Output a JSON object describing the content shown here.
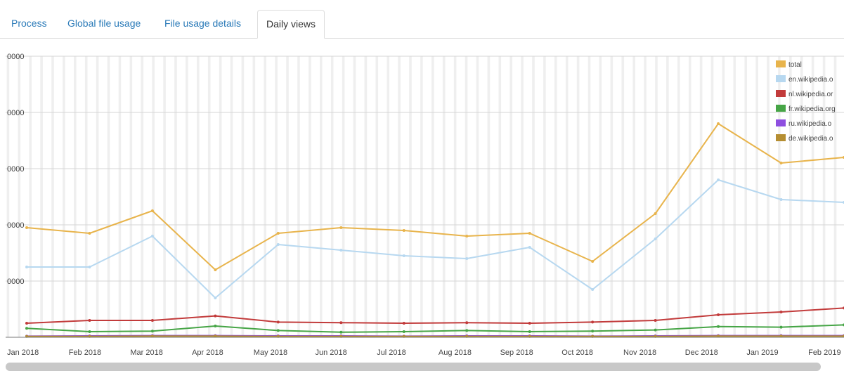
{
  "tabs": [
    {
      "label": "Process",
      "active": false
    },
    {
      "label": "Global file usage",
      "active": false
    },
    {
      "label": "File usage details",
      "active": false
    },
    {
      "label": "Daily views",
      "active": true
    }
  ],
  "chart_data": {
    "type": "line",
    "ylim": [
      0,
      50000
    ],
    "y_tick_labels": [
      "0000",
      "0000",
      "0000",
      "0000",
      "0000"
    ],
    "x_tick_labels": [
      "Jan 2018",
      "Feb 2018",
      "Mar 2018",
      "Apr 2018",
      "May 2018",
      "Jun 2018",
      "Jul 2018",
      "Aug 2018",
      "Sep 2018",
      "Oct 2018",
      "Nov 2018",
      "Dec 2018",
      "Jan 2019",
      "Feb 2019"
    ],
    "grid": "vertical daily stripes with horizontal gridlines",
    "legend_position": "top-right",
    "x": [
      "Jan 2018",
      "Feb 2018",
      "Mar 2018",
      "Apr 2018",
      "May 2018",
      "Jun 2018",
      "Jul 2018",
      "Aug 2018",
      "Sep 2018",
      "Oct 2018",
      "Nov 2018",
      "Dec 2018",
      "Jan 2019",
      "Feb 2019"
    ],
    "series": [
      {
        "name": "total",
        "color": "#e8b44c",
        "values": [
          19500,
          18500,
          22500,
          12000,
          18500,
          19500,
          19000,
          18000,
          18500,
          13500,
          22000,
          38000,
          31000,
          32000
        ]
      },
      {
        "name": "en.wikipedia.o",
        "color": "#b7d8f0",
        "values": [
          12500,
          12500,
          18000,
          7000,
          16500,
          15500,
          14500,
          14000,
          16000,
          8500,
          17500,
          28000,
          24500,
          24000
        ]
      },
      {
        "name": "nl.wikipedia.or",
        "color": "#c23b3b",
        "values": [
          2500,
          3000,
          3000,
          3800,
          2700,
          2600,
          2500,
          2600,
          2500,
          2700,
          3000,
          4000,
          4500,
          5200
        ]
      },
      {
        "name": "fr.wikipedia.org",
        "color": "#46a546",
        "values": [
          1600,
          1000,
          1100,
          2000,
          1200,
          900,
          1000,
          1200,
          1000,
          1100,
          1300,
          1900,
          1800,
          2200
        ]
      },
      {
        "name": "ru.wikipedia.o",
        "color": "#8e4fe0",
        "values": [
          200,
          250,
          300,
          300,
          250,
          250,
          200,
          250,
          250,
          200,
          250,
          300,
          300,
          300
        ]
      },
      {
        "name": "de.wikipedia.o",
        "color": "#b58e32",
        "values": [
          150,
          150,
          200,
          200,
          150,
          150,
          150,
          150,
          150,
          150,
          150,
          200,
          200,
          200
        ]
      }
    ]
  }
}
